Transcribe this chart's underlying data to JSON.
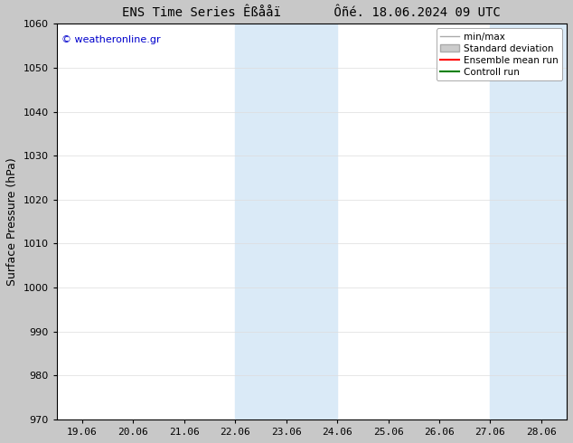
{
  "title": "ENS Time Series Êßååï       Ôñé. 18.06.2024 09 UTC",
  "ylabel": "Surface Pressure (hPa)",
  "ylim": [
    970,
    1060
  ],
  "yticks": [
    970,
    980,
    990,
    1000,
    1010,
    1020,
    1030,
    1040,
    1050,
    1060
  ],
  "xtick_labels": [
    "19.06",
    "20.06",
    "21.06",
    "22.06",
    "23.06",
    "24.06",
    "25.06",
    "26.06",
    "27.06",
    "28.06"
  ],
  "xtick_positions": [
    0,
    1,
    2,
    3,
    4,
    5,
    6,
    7,
    8,
    9
  ],
  "xlim": [
    -0.5,
    9.5
  ],
  "shaded_bands": [
    {
      "x_start": 3,
      "x_end": 5,
      "color": "#daeaf7"
    },
    {
      "x_start": 8,
      "x_end": 9.5,
      "color": "#daeaf7"
    }
  ],
  "watermark": "© weatheronline.gr",
  "watermark_color": "#0000cc",
  "legend_entries": [
    {
      "label": "min/max",
      "color": "#aaaaaa",
      "lw": 1.0,
      "style": "solid"
    },
    {
      "label": "Standard deviation",
      "color": "#cccccc",
      "lw": 5,
      "style": "solid"
    },
    {
      "label": "Ensemble mean run",
      "color": "#ff0000",
      "lw": 1.5,
      "style": "solid"
    },
    {
      "label": "Controll run",
      "color": "#008000",
      "lw": 1.5,
      "style": "solid"
    }
  ],
  "fig_bg_color": "#c8c8c8",
  "plot_bg_color": "#ffffff",
  "grid_color": "#dddddd",
  "title_fontsize": 10,
  "tick_fontsize": 8,
  "ylabel_fontsize": 9,
  "watermark_fontsize": 8,
  "legend_fontsize": 7.5
}
